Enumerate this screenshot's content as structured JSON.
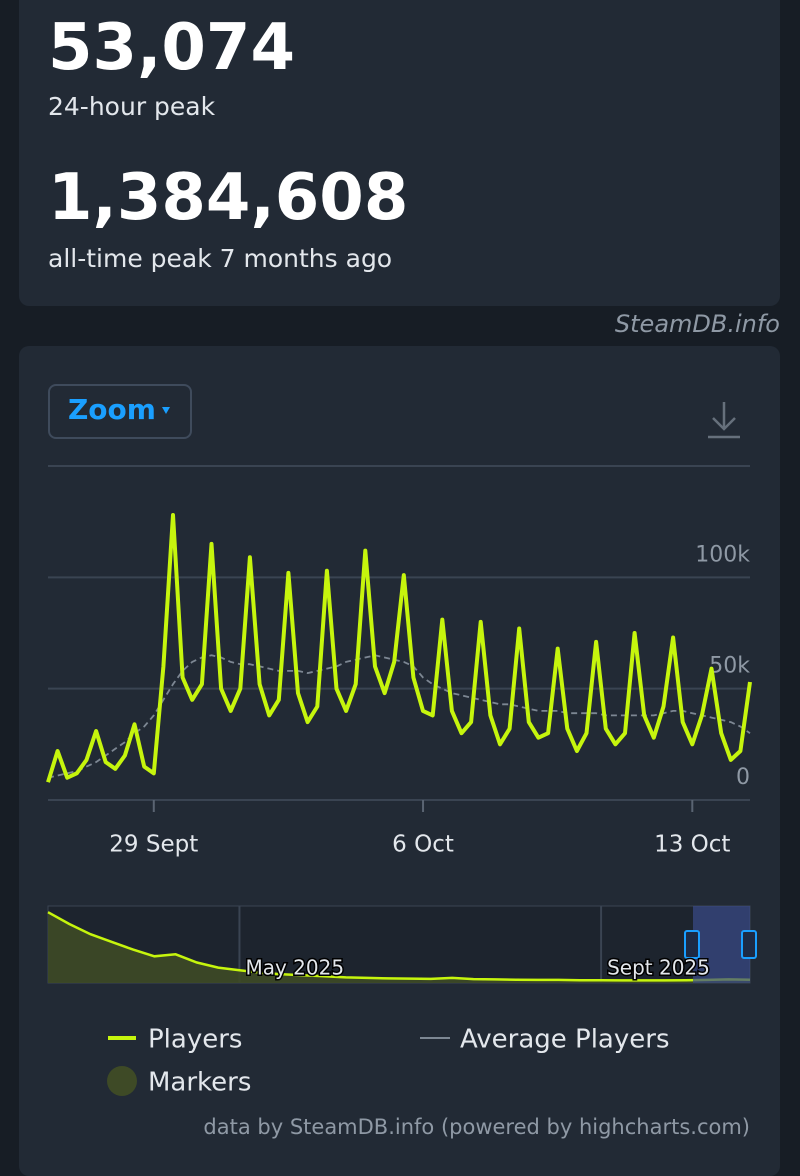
{
  "stats": [
    {
      "value": "53,074",
      "label": "24-hour peak"
    },
    {
      "value": "1,384,608",
      "label": "all-time peak 7 months ago"
    }
  ],
  "watermark": "SteamDB.info",
  "zoom": "Zoom",
  "credit": "data by SteamDB.info (powered by highcharts.com)",
  "chart_data": {
    "type": "line",
    "categories": [
      null,
      null,
      null,
      null,
      null,
      null,
      null,
      null,
      null,
      null,
      null,
      "29 Sept",
      null,
      null,
      null,
      null,
      null,
      null,
      null,
      null,
      null,
      null,
      null,
      null,
      null,
      null,
      null,
      null,
      null,
      null,
      null,
      null,
      null,
      null,
      null,
      null,
      null,
      null,
      null,
      "6 Oct",
      null,
      null,
      null,
      null,
      null,
      null,
      null,
      null,
      null,
      null,
      null,
      null,
      null,
      null,
      null,
      null,
      null,
      null,
      null,
      null,
      null,
      null,
      null,
      null,
      null,
      null,
      null,
      "13 Oct",
      null,
      null,
      null,
      null,
      null,
      null
    ],
    "series": [
      {
        "name": "Players",
        "color": "#c6f50d",
        "values": [
          8000,
          22000,
          10000,
          12000,
          18000,
          31000,
          17000,
          14000,
          20000,
          34000,
          15000,
          12000,
          60000,
          128000,
          55000,
          45000,
          52000,
          115000,
          50000,
          40000,
          50000,
          109000,
          52000,
          38000,
          45000,
          102000,
          48000,
          35000,
          42000,
          103000,
          50000,
          40000,
          52000,
          112000,
          60000,
          48000,
          62000,
          101000,
          55000,
          40000,
          38000,
          81000,
          40000,
          30000,
          35000,
          80000,
          38000,
          25000,
          32000,
          77000,
          35000,
          28000,
          30000,
          68000,
          32000,
          22000,
          30000,
          71000,
          32000,
          25000,
          30000,
          75000,
          38000,
          28000,
          42000,
          73000,
          35000,
          25000,
          38000,
          59000,
          30000,
          18000,
          22000,
          53000
        ]
      },
      {
        "name": "Average Players",
        "color": "#7d8793",
        "values": [
          10000,
          11000,
          12000,
          13000,
          15000,
          17000,
          20000,
          23000,
          26000,
          30000,
          33000,
          38000,
          45000,
          52000,
          58000,
          62000,
          64000,
          65000,
          64000,
          62000,
          61000,
          61000,
          60000,
          59000,
          58000,
          58000,
          58000,
          57000,
          58000,
          59000,
          60000,
          62000,
          63000,
          64000,
          65000,
          64000,
          63000,
          62000,
          60000,
          55000,
          52000,
          50000,
          48000,
          47000,
          46000,
          45000,
          44000,
          43000,
          43000,
          42000,
          41000,
          40000,
          40000,
          40000,
          39000,
          39000,
          39000,
          39000,
          38000,
          38000,
          38000,
          38000,
          38000,
          38000,
          39000,
          40000,
          40000,
          39000,
          38000,
          37000,
          36000,
          35000,
          33000,
          30000
        ]
      }
    ],
    "markers": {
      "name": "Markers",
      "color": "#3e4a26"
    },
    "ylim": [
      0,
      150000
    ],
    "yticks": [
      0,
      {
        "value": 50000,
        "label": "50k"
      },
      {
        "value": 100000,
        "label": "100k"
      }
    ],
    "grid": true,
    "navigator": {
      "categories": [
        null,
        null,
        null,
        null,
        null,
        null,
        null,
        null,
        null,
        "May 2025",
        null,
        null,
        null,
        null,
        null,
        null,
        null,
        null,
        null,
        null,
        null,
        null,
        null,
        null,
        null,
        null,
        "Sept 2025",
        null,
        null,
        null,
        null,
        null,
        null,
        null
      ],
      "values": [
        1380000,
        1150000,
        950000,
        800000,
        650000,
        520000,
        560000,
        400000,
        300000,
        250000,
        200000,
        170000,
        150000,
        130000,
        110000,
        100000,
        90000,
        85000,
        80000,
        100000,
        75000,
        70000,
        65000,
        60000,
        60000,
        55000,
        55000,
        50000,
        50000,
        50000,
        55000,
        60000,
        70000,
        65000
      ],
      "ylim": [
        0,
        1500000
      ]
    }
  }
}
